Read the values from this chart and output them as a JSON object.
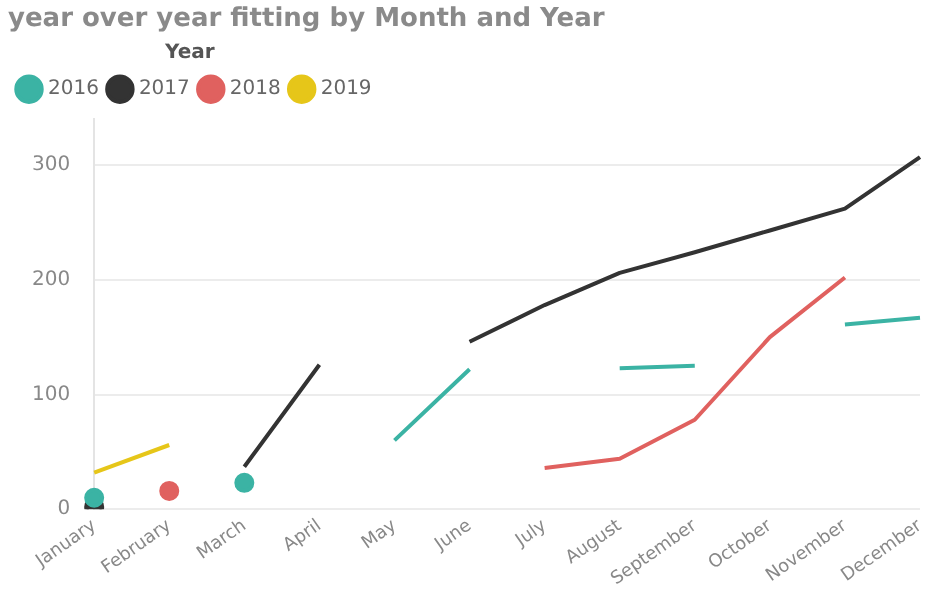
{
  "chart_data": {
    "type": "line",
    "title": "year over year fitting by Month and Year",
    "legend_title": "Year",
    "legend": "top left",
    "grid": "y",
    "categories": [
      "January",
      "February",
      "March",
      "April",
      "May",
      "June",
      "July",
      "August",
      "September",
      "October",
      "November",
      "December"
    ],
    "ylim": [
      0,
      340
    ],
    "yticks": [
      0,
      100,
      200,
      300
    ],
    "series": [
      {
        "name": "2016",
        "color": "#3bb3a4",
        "values": [
          10,
          null,
          23,
          null,
          60,
          122,
          null,
          123,
          125,
          null,
          161,
          167
        ]
      },
      {
        "name": "2017",
        "color": "#333333",
        "values": [
          2,
          null,
          37,
          126,
          null,
          146,
          178,
          206,
          224,
          243,
          262,
          307
        ]
      },
      {
        "name": "2018",
        "color": "#e0615f",
        "values": [
          null,
          16,
          null,
          null,
          null,
          null,
          36,
          44,
          78,
          150,
          202,
          null
        ]
      },
      {
        "name": "2019",
        "color": "#e6c619",
        "values": [
          32,
          56,
          null,
          null,
          null,
          null,
          null,
          null,
          null,
          null,
          null,
          null
        ]
      }
    ]
  }
}
